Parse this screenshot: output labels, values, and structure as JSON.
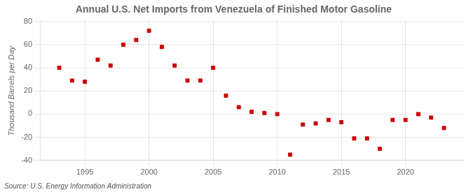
{
  "chart_data": {
    "type": "scatter",
    "title": "Annual U.S. Net Imports from Venezuela of Finished Motor Gasoline",
    "ylabel": "Thousand Barrels per Day",
    "annotations": [
      "Source: U.S. Energy Information Administration"
    ],
    "x": [
      1993,
      1994,
      1995,
      1996,
      1997,
      1998,
      1999,
      2000,
      2001,
      2002,
      2003,
      2004,
      2005,
      2006,
      2007,
      2008,
      2009,
      2010,
      2011,
      2012,
      2013,
      2014,
      2015,
      2016,
      2017,
      2018,
      2019,
      2020,
      2021,
      2022,
      2023
    ],
    "values": [
      40,
      29,
      28,
      47,
      42,
      60,
      64,
      72,
      58,
      42,
      29,
      29,
      40,
      16,
      6,
      2,
      1,
      0,
      -35,
      -9,
      -8,
      -5,
      -7,
      -21,
      -21,
      -30,
      -5,
      -5,
      0,
      -3,
      -12
    ],
    "color": "#cc0000",
    "marker": "square",
    "xlim": [
      1991.5,
      2024.5
    ],
    "xticks": [
      1995,
      2000,
      2005,
      2010,
      2015,
      2020
    ],
    "ylim": [
      -40,
      80
    ],
    "yticks": [
      -40,
      -20,
      0,
      20,
      40,
      60,
      80
    ],
    "grid": true
  }
}
